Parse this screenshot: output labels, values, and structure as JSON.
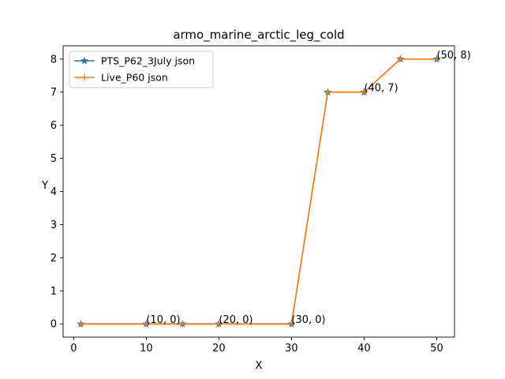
{
  "chart_data": {
    "type": "line",
    "title": "armo_marine_arctic_leg_cold",
    "xlabel": "X",
    "ylabel": "Y",
    "xlim": [
      -1.45,
      52.45
    ],
    "ylim": [
      -0.4,
      8.4
    ],
    "xticks": [
      0,
      10,
      20,
      30,
      40,
      50
    ],
    "yticks": [
      0,
      1,
      2,
      3,
      4,
      5,
      6,
      7,
      8
    ],
    "grid": false,
    "legend_position": "upper-left",
    "x": [
      1,
      10,
      15,
      20,
      30,
      35,
      40,
      45,
      50
    ],
    "series": [
      {
        "name": "PTS_P62_3July json",
        "values": [
          0,
          0,
          0,
          0,
          0,
          7,
          7,
          8,
          8
        ],
        "color": "#1f77b4",
        "marker": "star"
      },
      {
        "name": "Live_P60 json",
        "values": [
          0,
          0,
          0,
          0,
          0,
          7,
          7,
          8,
          8
        ],
        "color": "#ff7f0e",
        "marker": "plus"
      }
    ],
    "annotations": [
      {
        "text": "(10, 0)",
        "x": 10,
        "y": 0
      },
      {
        "text": "(20, 0)",
        "x": 20,
        "y": 0
      },
      {
        "text": "(30, 0)",
        "x": 30,
        "y": 0
      },
      {
        "text": "(40, 7)",
        "x": 40,
        "y": 7
      },
      {
        "text": "(50, 8)",
        "x": 50,
        "y": 8
      }
    ]
  }
}
